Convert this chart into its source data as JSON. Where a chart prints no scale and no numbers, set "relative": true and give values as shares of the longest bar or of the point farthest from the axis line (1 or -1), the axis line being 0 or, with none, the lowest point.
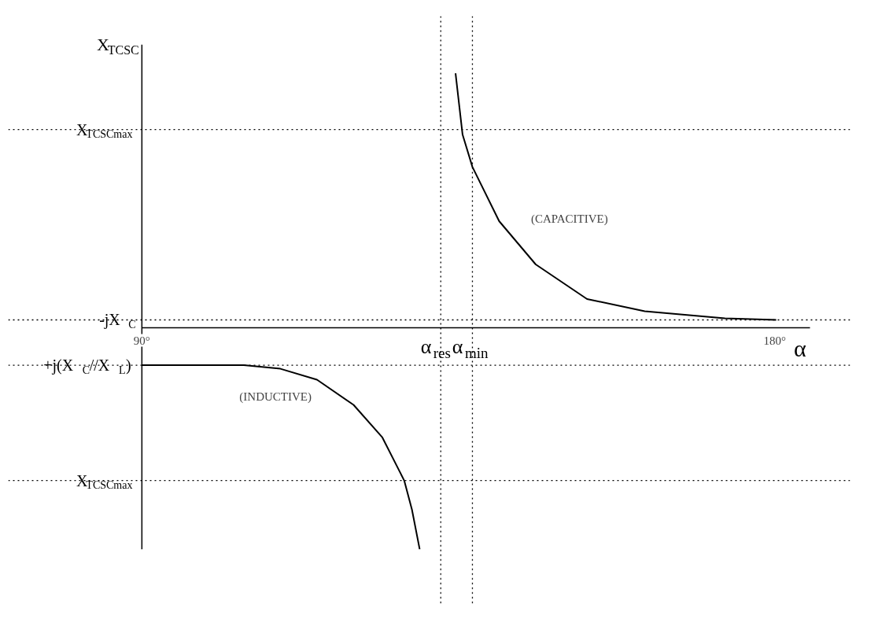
{
  "chart_data": {
    "type": "line",
    "relative": true,
    "xlabel": "α",
    "ylabel": "X$_{TCSC}$",
    "xlim": [
      90,
      185
    ],
    "xticks": [
      {
        "value": 90,
        "label": "90°"
      },
      {
        "value": 180,
        "label": "180°"
      }
    ],
    "line_style": "solid",
    "series": [
      {
        "color": "#000000",
        "x": [
          134.6,
          135.6,
          137.0,
          140.8,
          146.0,
          153.3,
          161.5,
          172.9,
          180.2
        ],
        "values": [
          1.0,
          0.759,
          0.632,
          0.419,
          0.249,
          0.113,
          0.065,
          0.037,
          0.031
        ]
      },
      {
        "color": "#000000",
        "x": [
          90,
          104.5,
          109.7,
          114.9,
          120.1,
          124.2,
          127.3,
          128.4,
          129.5
        ],
        "values": [
          -0.147,
          -0.147,
          -0.161,
          -0.204,
          -0.303,
          -0.431,
          -0.6,
          -0.714,
          -0.87
        ]
      }
    ],
    "ref_lines": [
      {
        "axis": "y",
        "value": 0.779,
        "label": "X$_{TCSCmax}$",
        "line_style": "dotted",
        "color": "#000000"
      },
      {
        "axis": "y",
        "value": 0.031,
        "label": "-jX$_{C}$",
        "line_style": "dotted",
        "color": "#000000"
      },
      {
        "axis": "y",
        "value": -0.147,
        "label": "+j(X$_{C}$//X$_{L}$)",
        "line_style": "dotted",
        "color": "#000000"
      },
      {
        "axis": "y",
        "value": -0.6,
        "label": "X$_{TCSCmax}$",
        "line_style": "dotted",
        "color": "#000000"
      },
      {
        "axis": "x",
        "value": 132.5,
        "label": "α$_{res}$",
        "line_style": "dotted",
        "color": "#000000"
      },
      {
        "axis": "x",
        "value": 137.0,
        "label": "α$_{min}$",
        "line_style": "dotted",
        "color": "#000000"
      }
    ],
    "annotations": [
      "(CAPACITIVE)",
      "(INDUCTIVE)"
    ]
  }
}
